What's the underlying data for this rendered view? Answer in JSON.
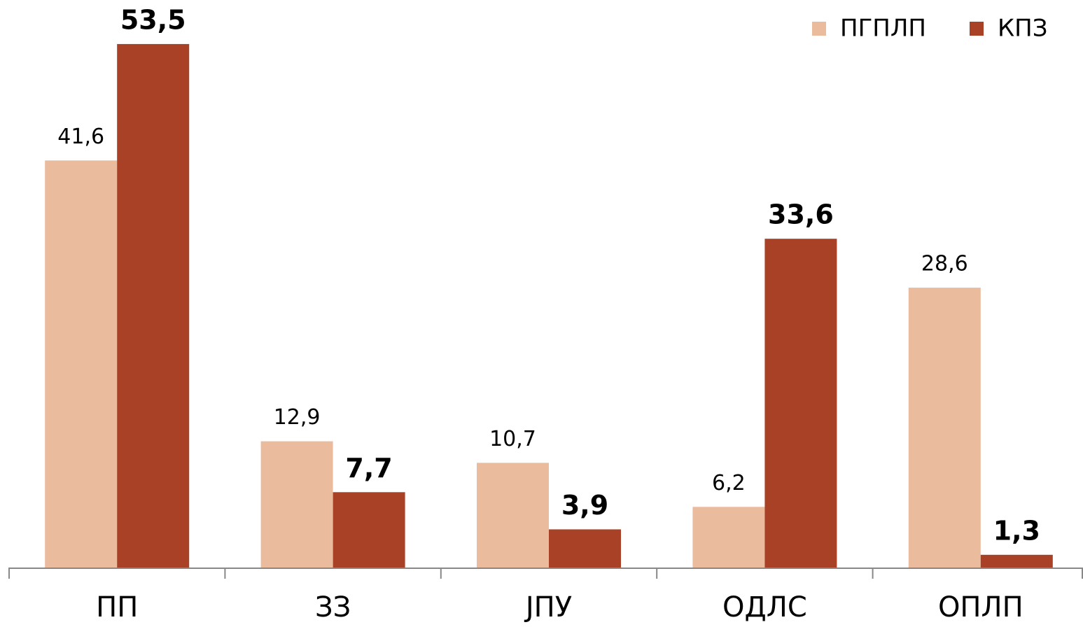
{
  "chart_data": {
    "type": "bar",
    "categories": [
      "ПП",
      "ЗЗ",
      "ЈПУ",
      "ОДЛС",
      "ОПЛП"
    ],
    "series": [
      {
        "name": "ПГПЛП",
        "color": "#EBBB9E",
        "values": [
          41.6,
          12.9,
          10.7,
          6.2,
          28.6
        ],
        "value_labels": [
          "41,6",
          "12,9",
          "10,7",
          "6,2",
          "28,6"
        ]
      },
      {
        "name": "КПЗ",
        "color": "#A84125",
        "values": [
          53.5,
          7.7,
          3.9,
          33.6,
          1.3
        ],
        "value_labels": [
          "53,5",
          "7,7",
          "3,9",
          "33,6",
          "1,3"
        ]
      }
    ],
    "ylim": [
      0,
      58
    ],
    "legend": "top-right"
  }
}
